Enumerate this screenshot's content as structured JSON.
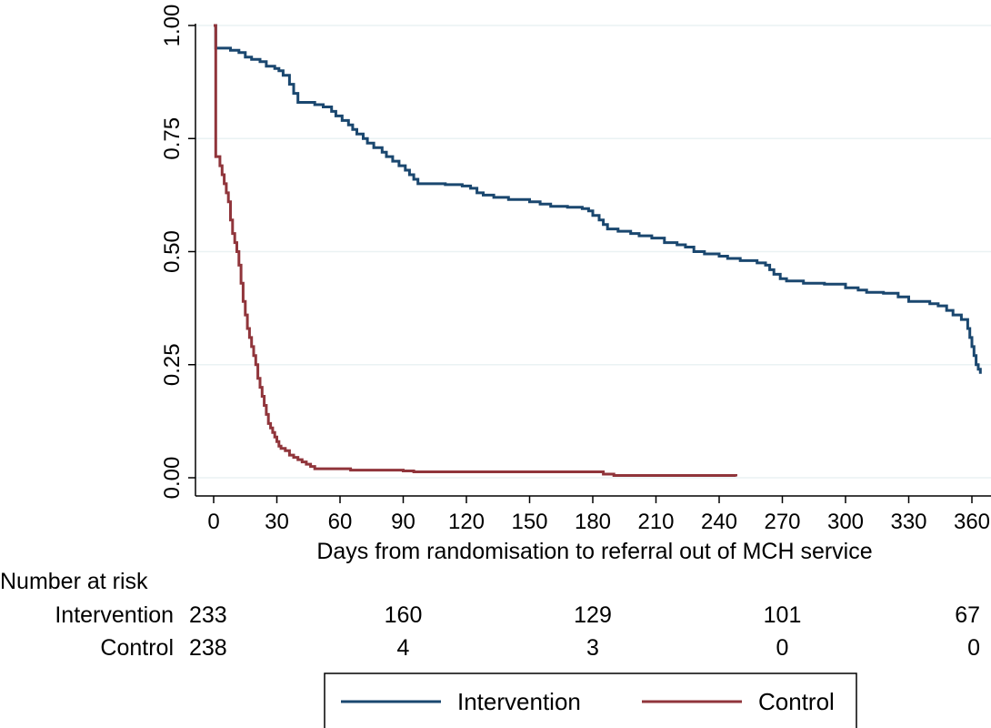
{
  "chart_data": {
    "type": "line",
    "subtype": "kaplan-meier step",
    "xlabel": "Days from randomisation to referral out of MCH service",
    "ylabel": "",
    "xlim": [
      0,
      365
    ],
    "ylim": [
      0,
      1
    ],
    "x_ticks": [
      0,
      30,
      60,
      90,
      120,
      150,
      180,
      210,
      240,
      270,
      300,
      330,
      360
    ],
    "y_ticks": [
      "0.00",
      "0.25",
      "0.50",
      "0.75",
      "1.00"
    ],
    "grid": "horizontal",
    "legend_position": "bottom",
    "colors": {
      "Intervention": "#1a476f",
      "Control": "#90353b",
      "grid": "#eaf2f3"
    },
    "series": [
      {
        "name": "Intervention",
        "points": [
          [
            0,
            1.0
          ],
          [
            1,
            0.95
          ],
          [
            6,
            0.95
          ],
          [
            8,
            0.945
          ],
          [
            12,
            0.94
          ],
          [
            15,
            0.93
          ],
          [
            18,
            0.925
          ],
          [
            22,
            0.92
          ],
          [
            25,
            0.91
          ],
          [
            29,
            0.905
          ],
          [
            31,
            0.9
          ],
          [
            33,
            0.89
          ],
          [
            36,
            0.87
          ],
          [
            38,
            0.85
          ],
          [
            40,
            0.83
          ],
          [
            45,
            0.83
          ],
          [
            48,
            0.825
          ],
          [
            52,
            0.82
          ],
          [
            56,
            0.81
          ],
          [
            58,
            0.8
          ],
          [
            61,
            0.79
          ],
          [
            64,
            0.78
          ],
          [
            66,
            0.77
          ],
          [
            68,
            0.76
          ],
          [
            71,
            0.75
          ],
          [
            73,
            0.74
          ],
          [
            76,
            0.73
          ],
          [
            80,
            0.72
          ],
          [
            82,
            0.71
          ],
          [
            85,
            0.7
          ],
          [
            88,
            0.69
          ],
          [
            91,
            0.68
          ],
          [
            93,
            0.67
          ],
          [
            95,
            0.66
          ],
          [
            97,
            0.65
          ],
          [
            100,
            0.65
          ],
          [
            110,
            0.648
          ],
          [
            118,
            0.645
          ],
          [
            122,
            0.64
          ],
          [
            125,
            0.63
          ],
          [
            128,
            0.625
          ],
          [
            133,
            0.62
          ],
          [
            140,
            0.615
          ],
          [
            150,
            0.61
          ],
          [
            155,
            0.605
          ],
          [
            160,
            0.6
          ],
          [
            168,
            0.598
          ],
          [
            175,
            0.595
          ],
          [
            178,
            0.59
          ],
          [
            180,
            0.58
          ],
          [
            183,
            0.57
          ],
          [
            185,
            0.56
          ],
          [
            187,
            0.55
          ],
          [
            192,
            0.545
          ],
          [
            198,
            0.54
          ],
          [
            202,
            0.535
          ],
          [
            208,
            0.53
          ],
          [
            214,
            0.52
          ],
          [
            220,
            0.515
          ],
          [
            224,
            0.51
          ],
          [
            228,
            0.5
          ],
          [
            233,
            0.495
          ],
          [
            240,
            0.49
          ],
          [
            244,
            0.485
          ],
          [
            250,
            0.48
          ],
          [
            258,
            0.475
          ],
          [
            262,
            0.47
          ],
          [
            264,
            0.46
          ],
          [
            266,
            0.45
          ],
          [
            269,
            0.44
          ],
          [
            272,
            0.435
          ],
          [
            280,
            0.43
          ],
          [
            290,
            0.428
          ],
          [
            300,
            0.42
          ],
          [
            306,
            0.415
          ],
          [
            310,
            0.41
          ],
          [
            318,
            0.408
          ],
          [
            325,
            0.4
          ],
          [
            330,
            0.39
          ],
          [
            340,
            0.385
          ],
          [
            344,
            0.38
          ],
          [
            348,
            0.37
          ],
          [
            351,
            0.36
          ],
          [
            355,
            0.35
          ],
          [
            358,
            0.33
          ],
          [
            359,
            0.31
          ],
          [
            360,
            0.29
          ],
          [
            361,
            0.27
          ],
          [
            362,
            0.25
          ],
          [
            363,
            0.24
          ],
          [
            364,
            0.23
          ]
        ]
      },
      {
        "name": "Control",
        "points": [
          [
            0,
            1.0
          ],
          [
            1,
            0.71
          ],
          [
            3,
            0.69
          ],
          [
            4,
            0.67
          ],
          [
            5,
            0.65
          ],
          [
            6,
            0.63
          ],
          [
            7,
            0.61
          ],
          [
            8,
            0.57
          ],
          [
            9,
            0.54
          ],
          [
            10,
            0.52
          ],
          [
            11,
            0.5
          ],
          [
            12,
            0.47
          ],
          [
            13,
            0.43
          ],
          [
            14,
            0.39
          ],
          [
            15,
            0.36
          ],
          [
            16,
            0.33
          ],
          [
            17,
            0.31
          ],
          [
            18,
            0.29
          ],
          [
            19,
            0.27
          ],
          [
            20,
            0.25
          ],
          [
            21,
            0.22
          ],
          [
            22,
            0.2
          ],
          [
            23,
            0.18
          ],
          [
            24,
            0.16
          ],
          [
            25,
            0.14
          ],
          [
            26,
            0.12
          ],
          [
            27,
            0.11
          ],
          [
            28,
            0.1
          ],
          [
            29,
            0.09
          ],
          [
            30,
            0.08
          ],
          [
            31,
            0.07
          ],
          [
            32,
            0.065
          ],
          [
            34,
            0.06
          ],
          [
            36,
            0.05
          ],
          [
            38,
            0.045
          ],
          [
            40,
            0.04
          ],
          [
            42,
            0.035
          ],
          [
            44,
            0.03
          ],
          [
            46,
            0.025
          ],
          [
            48,
            0.02
          ],
          [
            60,
            0.02
          ],
          [
            65,
            0.017
          ],
          [
            90,
            0.015
          ],
          [
            95,
            0.013
          ],
          [
            180,
            0.013
          ],
          [
            185,
            0.008
          ],
          [
            190,
            0.005
          ],
          [
            248,
            0.003
          ]
        ]
      }
    ],
    "risk_table": {
      "title": "Number at risk",
      "x": [
        0,
        90,
        180,
        270,
        360
      ],
      "rows": [
        {
          "label": "Intervention",
          "values": [
            "233",
            "160",
            "129",
            "101",
            "67"
          ]
        },
        {
          "label": "Control",
          "values": [
            "238",
            "4",
            "3",
            "0",
            "0"
          ]
        }
      ]
    },
    "legend": [
      "Intervention",
      "Control"
    ]
  }
}
